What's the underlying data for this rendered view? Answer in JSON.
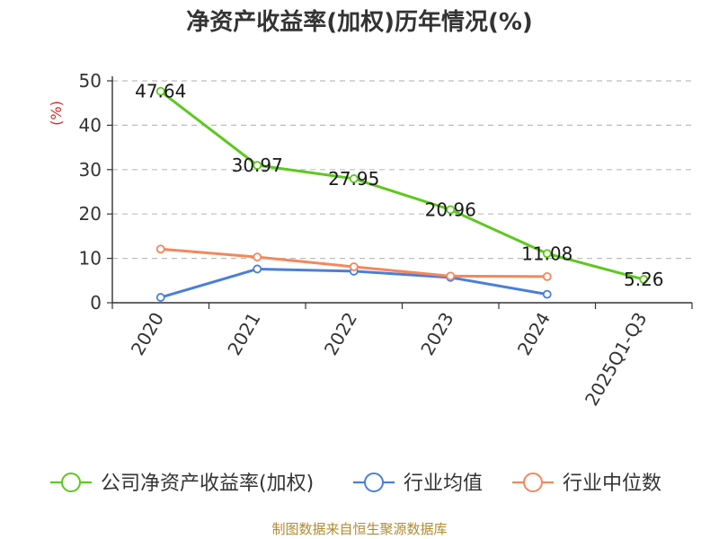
{
  "chart_data": {
    "type": "line",
    "title": "净资产收益率(加权)历年情况(%)",
    "ylabel": "(%)",
    "xlabel": "",
    "ylim": [
      0,
      50
    ],
    "yticks": [
      0,
      10,
      20,
      30,
      40,
      50
    ],
    "grid": true,
    "legend_position": "bottom",
    "categories": [
      "2020",
      "2021",
      "2022",
      "2023",
      "2024",
      "2025Q1-Q3"
    ],
    "series": [
      {
        "name": "公司净资产收益率(加权)",
        "color": "#5dc81e",
        "values": [
          47.64,
          30.97,
          27.95,
          20.96,
          11.08,
          5.26
        ],
        "data_labels": [
          "47.64",
          "30.97",
          "27.95",
          "20.96",
          "11.08",
          "5.26"
        ]
      },
      {
        "name": "行业均值",
        "color": "#4a7fd8",
        "values": [
          1.2,
          7.6,
          7.1,
          5.7,
          1.9,
          null
        ]
      },
      {
        "name": "行业中位数",
        "color": "#f4875c",
        "values": [
          12.1,
          10.3,
          8.1,
          6.0,
          5.9,
          null
        ]
      }
    ]
  },
  "footer": {
    "source": "制图数据来自恒生聚源数据库"
  }
}
